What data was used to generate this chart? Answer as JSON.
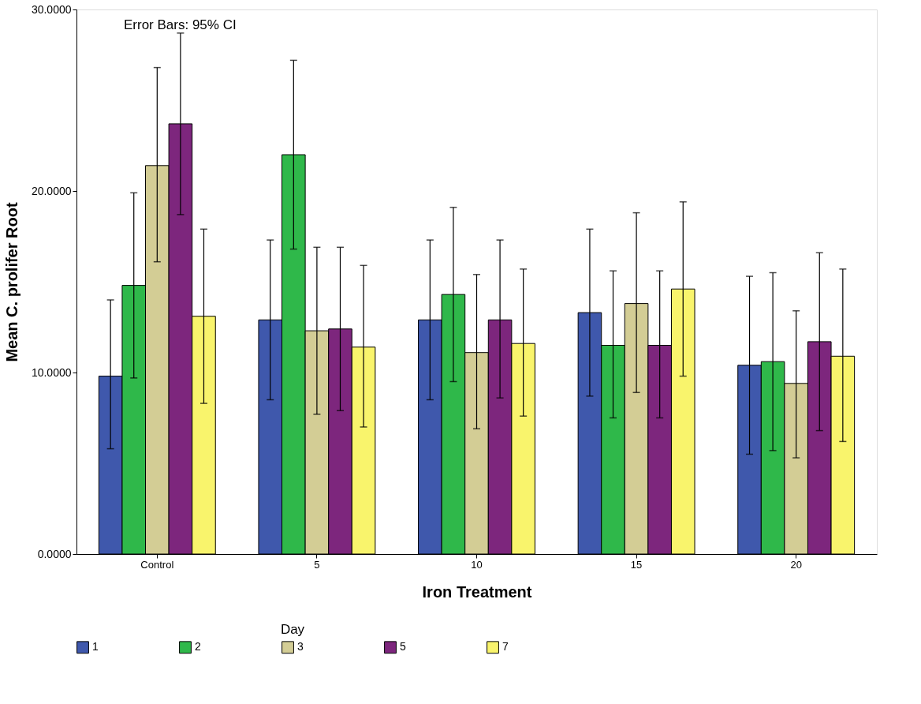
{
  "chart_data": {
    "type": "bar",
    "xlabel": "Iron Treatment",
    "ylabel": "Mean C. prolifer Root",
    "legend_title": "Day",
    "annotations": [
      "Error Bars: 95% CI"
    ],
    "categories": [
      "Control",
      "5",
      "10",
      "15",
      "20"
    ],
    "ylim": [
      0,
      30
    ],
    "yticks": [
      {
        "value": 0,
        "label": "0.0000"
      },
      {
        "value": 10,
        "label": "10.0000"
      },
      {
        "value": 20,
        "label": "20.0000"
      },
      {
        "value": 30,
        "label": "30.0000"
      }
    ],
    "grid": false,
    "legend": "bottom",
    "series": [
      {
        "name": "1",
        "color": "#3f58ac",
        "values": [
          9.8,
          12.9,
          12.9,
          13.3,
          10.4
        ],
        "errors": [
          [
            5.8,
            14.0
          ],
          [
            8.5,
            17.3
          ],
          [
            8.5,
            17.3
          ],
          [
            8.7,
            17.9
          ],
          [
            5.5,
            15.3
          ]
        ]
      },
      {
        "name": "2",
        "color": "#2fb84a",
        "values": [
          14.8,
          22.0,
          14.3,
          11.5,
          10.6
        ],
        "errors": [
          [
            9.7,
            19.9
          ],
          [
            16.8,
            27.2
          ],
          [
            9.5,
            19.1
          ],
          [
            7.5,
            15.6
          ],
          [
            5.7,
            15.5
          ]
        ]
      },
      {
        "name": "3",
        "color": "#d3cd95",
        "values": [
          21.4,
          12.3,
          11.1,
          13.8,
          9.4
        ],
        "errors": [
          [
            16.1,
            26.8
          ],
          [
            7.7,
            16.9
          ],
          [
            6.9,
            15.4
          ],
          [
            8.9,
            18.8
          ],
          [
            5.3,
            13.4
          ]
        ]
      },
      {
        "name": "5",
        "color": "#7d267d",
        "values": [
          23.7,
          12.4,
          12.9,
          11.5,
          11.7
        ],
        "errors": [
          [
            18.7,
            28.7
          ],
          [
            7.9,
            16.9
          ],
          [
            8.6,
            17.3
          ],
          [
            7.5,
            15.6
          ],
          [
            6.8,
            16.6
          ]
        ]
      },
      {
        "name": "7",
        "color": "#f9f46c",
        "values": [
          13.1,
          11.4,
          11.6,
          14.6,
          10.9
        ],
        "errors": [
          [
            8.3,
            17.9
          ],
          [
            7.0,
            15.9
          ],
          [
            7.6,
            15.7
          ],
          [
            9.8,
            19.4
          ],
          [
            6.2,
            15.7
          ]
        ]
      }
    ]
  }
}
